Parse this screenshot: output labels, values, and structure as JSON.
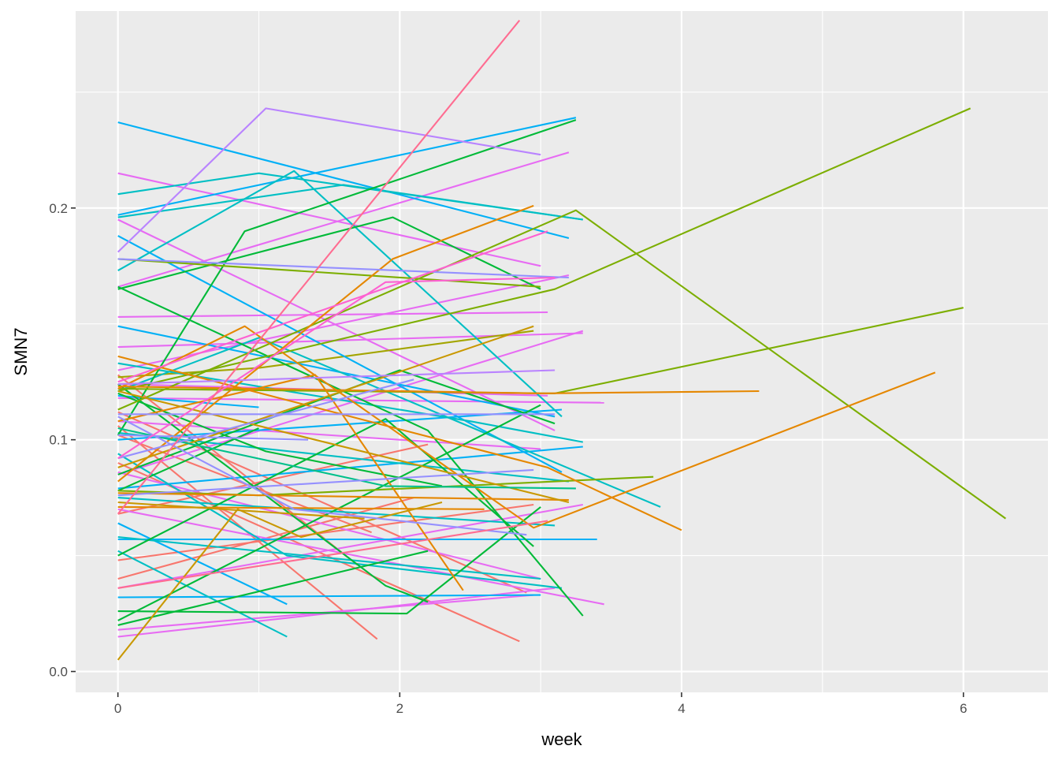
{
  "chart_data": {
    "type": "line",
    "title": "",
    "xlabel": "week",
    "ylabel": "SMN7",
    "xlim": [
      -0.3,
      6.6
    ],
    "ylim": [
      -0.009,
      0.285
    ],
    "x_ticks": [
      0,
      2,
      4,
      6
    ],
    "x_tick_labels": [
      "0",
      "2",
      "4",
      "6"
    ],
    "x_minor_ticks": [
      1,
      3,
      5
    ],
    "y_ticks": [
      0.0,
      0.1,
      0.2
    ],
    "y_tick_labels": [
      "0.0",
      "0.1",
      "0.2"
    ],
    "y_minor_ticks": [
      0.05,
      0.15,
      0.25
    ],
    "grid": true,
    "legend": "none",
    "panel_background": "#ebebeb",
    "grid_color": "#ffffff",
    "series": [
      {
        "color": "#f8766d",
        "x": [
          0,
          1.84
        ],
        "y": [
          0.106,
          0.014
        ]
      },
      {
        "color": "#f8766d",
        "x": [
          0,
          2.85
        ],
        "y": [
          0.09,
          0.013
        ]
      },
      {
        "color": "#f8766d",
        "x": [
          0,
          2.95
        ],
        "y": [
          0.048,
          0.072
        ]
      },
      {
        "color": "#f8766d",
        "x": [
          0,
          2.9
        ],
        "y": [
          0.112,
          0.034
        ]
      },
      {
        "color": "#f8766d",
        "x": [
          0,
          2.2
        ],
        "y": [
          0.068,
          0.098
        ]
      },
      {
        "color": "#f8766d",
        "x": [
          0,
          1.7
        ],
        "y": [
          0.128,
          0.046
        ]
      },
      {
        "color": "#f8766d",
        "x": [
          0,
          2.1
        ],
        "y": [
          0.04,
          0.075
        ]
      },
      {
        "color": "#f8766d",
        "x": [
          0,
          1.8
        ],
        "y": [
          0.102,
          0.06
        ]
      },
      {
        "color": "#e76bf3",
        "x": [
          0,
          3.45
        ],
        "y": [
          0.07,
          0.029
        ]
      },
      {
        "color": "#e76bf3",
        "x": [
          0,
          3.1
        ],
        "y": [
          0.015,
          0.036
        ]
      },
      {
        "color": "#e76bf3",
        "x": [
          0,
          3.1
        ],
        "y": [
          0.195,
          0.104
        ]
      },
      {
        "color": "#e76bf3",
        "x": [
          0,
          3.0
        ],
        "y": [
          0.215,
          0.175
        ]
      },
      {
        "color": "#e76bf3",
        "x": [
          0,
          3.2
        ],
        "y": [
          0.166,
          0.224
        ]
      },
      {
        "color": "#e76bf3",
        "x": [
          0,
          3.05
        ],
        "y": [
          0.153,
          0.155
        ]
      },
      {
        "color": "#e76bf3",
        "x": [
          0,
          3.3
        ],
        "y": [
          0.14,
          0.146
        ]
      },
      {
        "color": "#e76bf3",
        "x": [
          0,
          3.2
        ],
        "y": [
          0.13,
          0.171
        ]
      },
      {
        "color": "#e76bf3",
        "x": [
          0,
          3.45
        ],
        "y": [
          0.118,
          0.116
        ]
      },
      {
        "color": "#e76bf3",
        "x": [
          0,
          3.0
        ],
        "y": [
          0.108,
          0.096
        ]
      },
      {
        "color": "#e76bf3",
        "x": [
          0,
          3.0
        ],
        "y": [
          0.086,
          0.04
        ]
      },
      {
        "color": "#e76bf3",
        "x": [
          0,
          3.3
        ],
        "y": [
          0.036,
          0.072
        ]
      },
      {
        "color": "#e76bf3",
        "x": [
          0,
          2.95
        ],
        "y": [
          0.018,
          0.033
        ]
      },
      {
        "color": "#e76bf3",
        "x": [
          0,
          3.05
        ],
        "y": [
          0.124,
          0.119
        ]
      },
      {
        "color": "#e76bf3",
        "x": [
          0,
          3.3
        ],
        "y": [
          0.085,
          0.147
        ]
      },
      {
        "color": "#a3a500",
        "x": [
          0,
          1.0,
          2.95
        ],
        "y": [
          0.127,
          0.131,
          0.147
        ]
      },
      {
        "color": "#00b0f6",
        "x": [
          0,
          3.2
        ],
        "y": [
          0.237,
          0.187
        ]
      },
      {
        "color": "#00b0f6",
        "x": [
          0,
          3.25
        ],
        "y": [
          0.197,
          0.239
        ]
      },
      {
        "color": "#00b0f6",
        "x": [
          0,
          3.15
        ],
        "y": [
          0.188,
          0.086
        ]
      },
      {
        "color": "#00b0f6",
        "x": [
          0,
          3.1
        ],
        "y": [
          0.149,
          0.11
        ]
      },
      {
        "color": "#00b0f6",
        "x": [
          0,
          3.3
        ],
        "y": [
          0.079,
          0.097
        ]
      },
      {
        "color": "#00b0f6",
        "x": [
          0,
          3.0
        ],
        "y": [
          0.032,
          0.033
        ]
      },
      {
        "color": "#00b0f6",
        "x": [
          0,
          3.4
        ],
        "y": [
          0.057,
          0.057
        ]
      },
      {
        "color": "#00b0f6",
        "x": [
          0,
          3.15
        ],
        "y": [
          0.1,
          0.113
        ]
      },
      {
        "color": "#00b0f6",
        "x": [
          0,
          1.0
        ],
        "y": [
          0.119,
          0.114
        ]
      },
      {
        "color": "#00b0f6",
        "x": [
          0,
          1.2
        ],
        "y": [
          0.064,
          0.029
        ]
      },
      {
        "color": "#00bfc4",
        "x": [
          0,
          1.0,
          3.3
        ],
        "y": [
          0.206,
          0.215,
          0.195
        ]
      },
      {
        "color": "#00bfc4",
        "x": [
          0,
          1.25,
          3.15
        ],
        "y": [
          0.173,
          0.216,
          0.11
        ]
      },
      {
        "color": "#00bfc4",
        "x": [
          0,
          1.6,
          3.3
        ],
        "y": [
          0.196,
          0.21,
          0.195
        ]
      },
      {
        "color": "#00bfc4",
        "x": [
          0,
          1.0,
          3.85
        ],
        "y": [
          0.121,
          0.144,
          0.071
        ]
      },
      {
        "color": "#00bfc4",
        "x": [
          0,
          2.5,
          3.3
        ],
        "y": [
          0.133,
          0.108,
          0.099
        ]
      },
      {
        "color": "#00bfc4",
        "x": [
          0,
          1.2,
          3.15
        ],
        "y": [
          0.094,
          0.05,
          0.036
        ]
      },
      {
        "color": "#00bfc4",
        "x": [
          0,
          1.2
        ],
        "y": [
          0.052,
          0.015
        ]
      },
      {
        "color": "#00bfc4",
        "x": [
          0,
          3.1
        ],
        "y": [
          0.075,
          0.063
        ]
      },
      {
        "color": "#00bfc4",
        "x": [
          0,
          3.0
        ],
        "y": [
          0.058,
          0.04
        ]
      },
      {
        "color": "#00bfc4",
        "x": [
          0,
          3.2
        ],
        "y": [
          0.103,
          0.082
        ]
      },
      {
        "color": "#00ba38",
        "x": [
          0,
          0.9,
          3.25
        ],
        "y": [
          0.102,
          0.19,
          0.238
        ]
      },
      {
        "color": "#00ba38",
        "x": [
          0,
          1.95,
          3.0
        ],
        "y": [
          0.165,
          0.196,
          0.165
        ]
      },
      {
        "color": "#00ba38",
        "x": [
          0,
          2.2,
          3.3
        ],
        "y": [
          0.166,
          0.104,
          0.024
        ]
      },
      {
        "color": "#00ba38",
        "x": [
          0,
          1.9,
          2.95
        ],
        "y": [
          0.05,
          0.109,
          0.054
        ]
      },
      {
        "color": "#00ba38",
        "x": [
          0,
          2.2,
          3.0
        ],
        "y": [
          0.022,
          0.09,
          0.115
        ]
      },
      {
        "color": "#00ba38",
        "x": [
          0,
          1.9,
          2.2
        ],
        "y": [
          0.124,
          0.037,
          0.03
        ]
      },
      {
        "color": "#00ba38",
        "x": [
          0,
          2.05,
          3.0
        ],
        "y": [
          0.026,
          0.025,
          0.071
        ]
      },
      {
        "color": "#00ba38",
        "x": [
          0,
          1.05,
          2.3
        ],
        "y": [
          0.12,
          0.095,
          0.08
        ]
      },
      {
        "color": "#00ba38",
        "x": [
          0,
          2.0,
          3.1
        ],
        "y": [
          0.085,
          0.13,
          0.107
        ]
      },
      {
        "color": "#00ba38",
        "x": [
          0,
          2.2
        ],
        "y": [
          0.02,
          0.052
        ]
      },
      {
        "color": "#00ba38",
        "x": [
          0,
          1.0
        ],
        "y": [
          0.078,
          0.105
        ]
      },
      {
        "color": "#7cae00",
        "x": [
          0,
          3.25,
          6.3
        ],
        "y": [
          0.113,
          0.199,
          0.066
        ]
      },
      {
        "color": "#7cae00",
        "x": [
          0,
          3.1,
          6.05
        ],
        "y": [
          0.121,
          0.165,
          0.243
        ]
      },
      {
        "color": "#7cae00",
        "x": [
          0,
          3.1,
          6.0
        ],
        "y": [
          0.122,
          0.12,
          0.157
        ]
      },
      {
        "color": "#7cae00",
        "x": [
          0,
          1.0,
          3.8
        ],
        "y": [
          0.078,
          0.076,
          0.084
        ]
      },
      {
        "color": "#7cae00",
        "x": [
          0,
          3.0
        ],
        "y": [
          0.178,
          0.166
        ]
      },
      {
        "color": "#e58700",
        "x": [
          0,
          0.9,
          2.95,
          5.8
        ],
        "y": [
          0.122,
          0.149,
          0.062,
          0.129
        ]
      },
      {
        "color": "#e58700",
        "x": [
          0,
          3.05,
          4.0
        ],
        "y": [
          0.136,
          0.088,
          0.061
        ]
      },
      {
        "color": "#e58700",
        "x": [
          0,
          1.95,
          2.95
        ],
        "y": [
          0.082,
          0.178,
          0.201
        ]
      },
      {
        "color": "#e58700",
        "x": [
          0,
          1.4,
          2.45
        ],
        "y": [
          0.108,
          0.128,
          0.035
        ]
      },
      {
        "color": "#e58700",
        "x": [
          0,
          3.0,
          4.55
        ],
        "y": [
          0.123,
          0.12,
          0.121
        ]
      },
      {
        "color": "#e58700",
        "x": [
          0,
          3.2
        ],
        "y": [
          0.077,
          0.074
        ]
      },
      {
        "color": "#e58700",
        "x": [
          0,
          2.6
        ],
        "y": [
          0.071,
          0.07
        ]
      },
      {
        "color": "#c99800",
        "x": [
          0,
          0.85,
          1.3,
          2.3
        ],
        "y": [
          0.005,
          0.07,
          0.058,
          0.073
        ]
      },
      {
        "color": "#c99800",
        "x": [
          0,
          1.75
        ],
        "y": [
          0.073,
          0.066
        ]
      },
      {
        "color": "#c99800",
        "x": [
          0,
          2.95
        ],
        "y": [
          0.088,
          0.149
        ]
      },
      {
        "color": "#c99800",
        "x": [
          0,
          3.2
        ],
        "y": [
          0.121,
          0.073
        ]
      },
      {
        "color": "#00c08b",
        "x": [
          0,
          1.9,
          3.25
        ],
        "y": [
          0.105,
          0.08,
          0.079
        ]
      },
      {
        "color": "#9590ff",
        "x": [
          0,
          3.2
        ],
        "y": [
          0.178,
          0.17
        ]
      },
      {
        "color": "#9590ff",
        "x": [
          0,
          3.1
        ],
        "y": [
          0.111,
          0.111
        ]
      },
      {
        "color": "#9590ff",
        "x": [
          0,
          2.95
        ],
        "y": [
          0.076,
          0.087
        ]
      },
      {
        "color": "#9590ff",
        "x": [
          0,
          1.35
        ],
        "y": [
          0.102,
          0.1
        ]
      },
      {
        "color": "#9590ff",
        "x": [
          0,
          1.25,
          2.9
        ],
        "y": [
          0.11,
          0.07,
          0.059
        ]
      },
      {
        "color": "#9590ff",
        "x": [
          0,
          2.1
        ],
        "y": [
          0.092,
          0.126
        ]
      },
      {
        "color": "#b983ff",
        "x": [
          0,
          1.05,
          3.0
        ],
        "y": [
          0.181,
          0.243,
          0.223
        ]
      },
      {
        "color": "#b983ff",
        "x": [
          0,
          3.1
        ],
        "y": [
          0.124,
          0.13
        ]
      },
      {
        "color": "#fd61d1",
        "x": [
          0,
          1.9,
          3.1
        ],
        "y": [
          0.092,
          0.168,
          0.17
        ]
      },
      {
        "color": "#fd61d1",
        "x": [
          0,
          3.05
        ],
        "y": [
          0.125,
          0.19
        ]
      },
      {
        "color": "#ff6c91",
        "x": [
          0,
          2.85
        ],
        "y": [
          0.068,
          0.281
        ]
      },
      {
        "color": "#ff6c91",
        "x": [
          0,
          3.05
        ],
        "y": [
          0.036,
          0.065
        ]
      }
    ]
  }
}
